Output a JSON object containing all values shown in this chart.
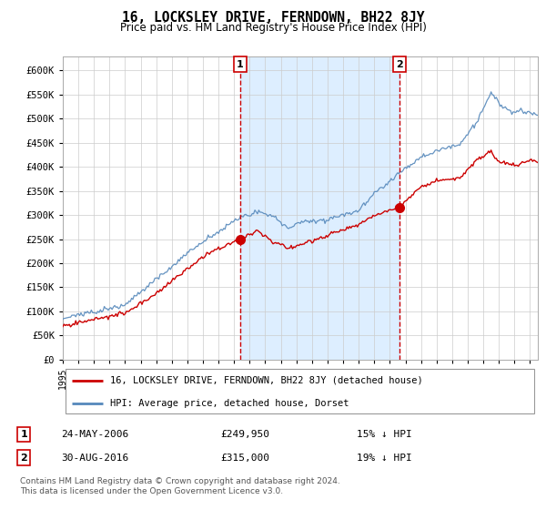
{
  "title": "16, LOCKSLEY DRIVE, FERNDOWN, BH22 8JY",
  "subtitle": "Price paid vs. HM Land Registry's House Price Index (HPI)",
  "legend_label_red": "16, LOCKSLEY DRIVE, FERNDOWN, BH22 8JY (detached house)",
  "legend_label_blue": "HPI: Average price, detached house, Dorset",
  "marker1_date": "24-MAY-2006",
  "marker1_price": 249950,
  "marker1_year": 2006.375,
  "marker1_text": "15% ↓ HPI",
  "marker2_date": "30-AUG-2016",
  "marker2_price": 315000,
  "marker2_year": 2016.625,
  "marker2_text": "19% ↓ HPI",
  "footnote1": "Contains HM Land Registry data © Crown copyright and database right 2024.",
  "footnote2": "This data is licensed under the Open Government Licence v3.0.",
  "red_color": "#cc0000",
  "blue_color": "#5588bb",
  "fill_color": "#ddeeff",
  "marker_color": "#cc0000",
  "background_color": "#ffffff",
  "grid_color": "#cccccc",
  "ylim": [
    0,
    630000
  ],
  "yticks": [
    0,
    50000,
    100000,
    150000,
    200000,
    250000,
    300000,
    350000,
    400000,
    450000,
    500000,
    550000,
    600000
  ],
  "xlim_start": 1995.0,
  "xlim_end": 2025.5
}
